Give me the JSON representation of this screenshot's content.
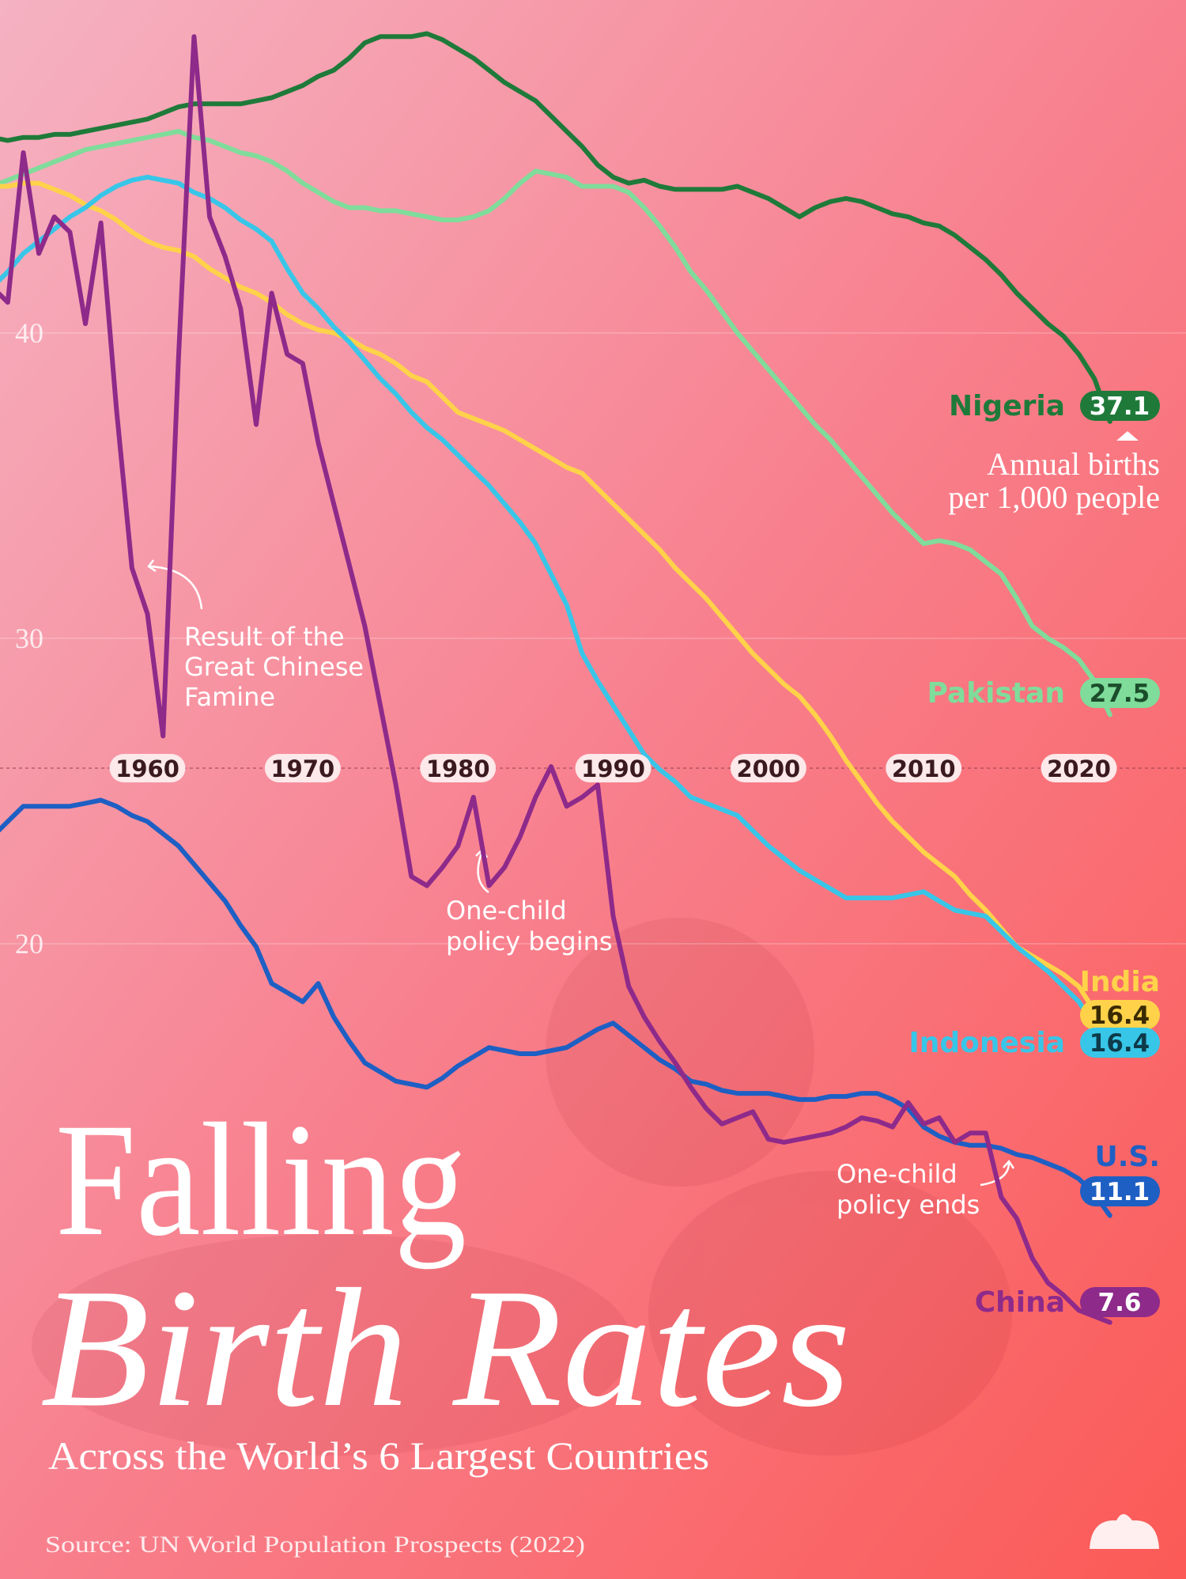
{
  "chart_data": {
    "type": "line",
    "title_lines": [
      "Falling",
      "Birth Rates"
    ],
    "subtitle": "Across the World’s 6 Largest Countries",
    "source": "Source: UN World Population Prospects (2022)",
    "unit_note": [
      "Annual births",
      "per 1,000 people"
    ],
    "annotations": [
      {
        "lines": [
          "Result of the",
          "Great Chinese",
          "Famine"
        ]
      },
      {
        "lines": [
          "One-child",
          "policy begins"
        ]
      },
      {
        "lines": [
          "One-child",
          "policy ends"
        ]
      }
    ],
    "grid": true,
    "xlim": [
      1950.5,
      2026.9
    ],
    "ylim": [
      -0.8,
      50.9
    ],
    "xticks": [
      1960,
      1970,
      1980,
      1990,
      2000,
      2010,
      2020
    ],
    "yticks": [
      20,
      30,
      40
    ],
    "x": [
      1950,
      1951,
      1952,
      1953,
      1954,
      1955,
      1956,
      1957,
      1958,
      1959,
      1960,
      1961,
      1962,
      1963,
      1964,
      1965,
      1966,
      1967,
      1968,
      1969,
      1970,
      1971,
      1972,
      1973,
      1974,
      1975,
      1976,
      1977,
      1978,
      1979,
      1980,
      1981,
      1982,
      1983,
      1984,
      1985,
      1986,
      1987,
      1988,
      1989,
      1990,
      1991,
      1992,
      1993,
      1994,
      1995,
      1996,
      1997,
      1998,
      1999,
      2000,
      2001,
      2002,
      2003,
      2004,
      2005,
      2006,
      2007,
      2008,
      2009,
      2010,
      2011,
      2012,
      2013,
      2014,
      2015,
      2016,
      2017,
      2018,
      2019,
      2020,
      2021,
      2022
    ],
    "series": [
      {
        "name": "Nigeria",
        "color": "#1f7a3a",
        "values": [
          46.4,
          46.3,
          46.4,
          46.4,
          46.5,
          46.5,
          46.6,
          46.7,
          46.8,
          46.9,
          47.0,
          47.2,
          47.4,
          47.5,
          47.5,
          47.5,
          47.5,
          47.6,
          47.7,
          47.9,
          48.1,
          48.4,
          48.6,
          49.0,
          49.5,
          49.7,
          49.7,
          49.7,
          49.8,
          49.6,
          49.3,
          49.0,
          48.6,
          48.2,
          47.9,
          47.6,
          47.1,
          46.6,
          46.1,
          45.5,
          45.1,
          44.9,
          45.0,
          44.8,
          44.7,
          44.7,
          44.7,
          44.7,
          44.8,
          44.6,
          44.4,
          44.1,
          43.8,
          44.1,
          44.3,
          44.4,
          44.3,
          44.1,
          43.9,
          43.8,
          43.6,
          43.5,
          43.2,
          42.8,
          42.4,
          41.9,
          41.3,
          40.8,
          40.3,
          39.9,
          39.3,
          38.5,
          37.1
        ]
      },
      {
        "name": "Pakistan",
        "color": "#7fdc9a",
        "values": [
          44.8,
          45.0,
          45.2,
          45.4,
          45.6,
          45.8,
          46.0,
          46.1,
          46.2,
          46.3,
          46.4,
          46.5,
          46.6,
          46.4,
          46.3,
          46.1,
          45.9,
          45.8,
          45.6,
          45.3,
          44.9,
          44.6,
          44.3,
          44.1,
          44.1,
          44.0,
          44.0,
          43.9,
          43.8,
          43.7,
          43.7,
          43.8,
          44.0,
          44.4,
          44.9,
          45.3,
          45.2,
          45.1,
          44.8,
          44.8,
          44.8,
          44.6,
          44.1,
          43.5,
          42.8,
          42.0,
          41.4,
          40.7,
          40.0,
          39.4,
          38.8,
          38.2,
          37.6,
          37.0,
          36.5,
          35.9,
          35.3,
          34.7,
          34.1,
          33.6,
          33.1,
          33.2,
          33.1,
          32.9,
          32.5,
          32.1,
          31.3,
          30.4,
          30.0,
          29.7,
          29.3,
          28.6,
          27.5
        ]
      },
      {
        "name": "India",
        "color": "#ffd24a",
        "values": [
          44.8,
          44.8,
          44.9,
          44.9,
          44.7,
          44.5,
          44.2,
          44.0,
          43.7,
          43.3,
          43.0,
          42.8,
          42.7,
          42.5,
          42.1,
          41.8,
          41.5,
          41.3,
          41.0,
          40.6,
          40.3,
          40.1,
          40.0,
          39.8,
          39.5,
          39.3,
          39.0,
          38.6,
          38.4,
          37.9,
          37.4,
          37.2,
          37.0,
          36.8,
          36.5,
          36.2,
          35.9,
          35.6,
          35.4,
          34.9,
          34.4,
          33.9,
          33.4,
          32.9,
          32.3,
          31.8,
          31.3,
          30.7,
          30.1,
          29.5,
          29.0,
          28.5,
          28.1,
          27.5,
          26.8,
          26.0,
          25.3,
          24.6,
          24.0,
          23.5,
          23.0,
          22.6,
          22.2,
          21.6,
          21.1,
          20.5,
          19.9,
          19.6,
          19.3,
          19.0,
          18.6,
          17.8,
          16.4
        ]
      },
      {
        "name": "Indonesia",
        "color": "#38c6e8",
        "values": [
          41.5,
          42.0,
          42.6,
          43.0,
          43.4,
          43.8,
          44.1,
          44.5,
          44.8,
          45.0,
          45.1,
          45.0,
          44.9,
          44.6,
          44.4,
          44.1,
          43.7,
          43.4,
          43.0,
          42.1,
          41.3,
          40.8,
          40.2,
          39.7,
          39.1,
          38.5,
          38.0,
          37.4,
          36.9,
          36.5,
          36.0,
          35.5,
          35.0,
          34.4,
          33.8,
          33.1,
          32.1,
          31.1,
          29.5,
          28.6,
          27.8,
          27.0,
          26.2,
          25.7,
          25.3,
          24.8,
          24.6,
          24.4,
          24.2,
          23.7,
          23.2,
          22.8,
          22.4,
          22.1,
          21.8,
          21.5,
          21.5,
          21.5,
          21.5,
          21.6,
          21.7,
          21.4,
          21.1,
          21.0,
          20.9,
          20.4,
          19.9,
          19.5,
          19.1,
          18.6,
          18.1,
          17.3,
          16.4
        ]
      },
      {
        "name": "U.S.",
        "color": "#1e5fc4",
        "values": [
          23.5,
          24.0,
          24.5,
          24.5,
          24.5,
          24.5,
          24.6,
          24.7,
          24.5,
          24.2,
          24.0,
          23.6,
          23.2,
          22.6,
          22.0,
          21.4,
          20.6,
          19.9,
          18.7,
          18.4,
          18.1,
          18.7,
          17.6,
          16.8,
          16.1,
          15.8,
          15.5,
          15.4,
          15.3,
          15.6,
          16.0,
          16.3,
          16.6,
          16.5,
          16.4,
          16.4,
          16.5,
          16.6,
          16.9,
          17.2,
          17.4,
          17.0,
          16.6,
          16.2,
          15.9,
          15.5,
          15.4,
          15.2,
          15.1,
          15.1,
          15.1,
          15.0,
          14.9,
          14.9,
          15.0,
          15.0,
          15.1,
          15.1,
          14.9,
          14.6,
          14.0,
          13.7,
          13.5,
          13.4,
          13.4,
          13.3,
          13.1,
          13.0,
          12.8,
          12.6,
          12.3,
          11.8,
          11.1
        ]
      },
      {
        "name": "China",
        "color": "#8e2a8a",
        "values": [
          41.5,
          41.0,
          45.9,
          42.6,
          43.8,
          43.3,
          40.3,
          43.6,
          37.5,
          32.3,
          30.8,
          26.8,
          39.2,
          49.7,
          43.8,
          42.5,
          40.8,
          37.0,
          41.3,
          39.3,
          39.0,
          36.4,
          34.4,
          32.4,
          30.4,
          27.8,
          25.2,
          22.2,
          21.9,
          22.5,
          23.2,
          24.8,
          21.9,
          22.5,
          23.5,
          24.8,
          25.8,
          24.5,
          24.8,
          25.2,
          20.9,
          18.6,
          17.6,
          16.8,
          16.1,
          15.3,
          14.6,
          14.1,
          14.3,
          14.5,
          13.6,
          13.5,
          13.6,
          13.7,
          13.8,
          14.0,
          14.3,
          14.2,
          14.0,
          14.8,
          14.1,
          14.3,
          13.5,
          13.8,
          13.8,
          11.7,
          11.0,
          9.7,
          8.9,
          8.5,
          8.0,
          7.8,
          7.6
        ]
      }
    ]
  }
}
